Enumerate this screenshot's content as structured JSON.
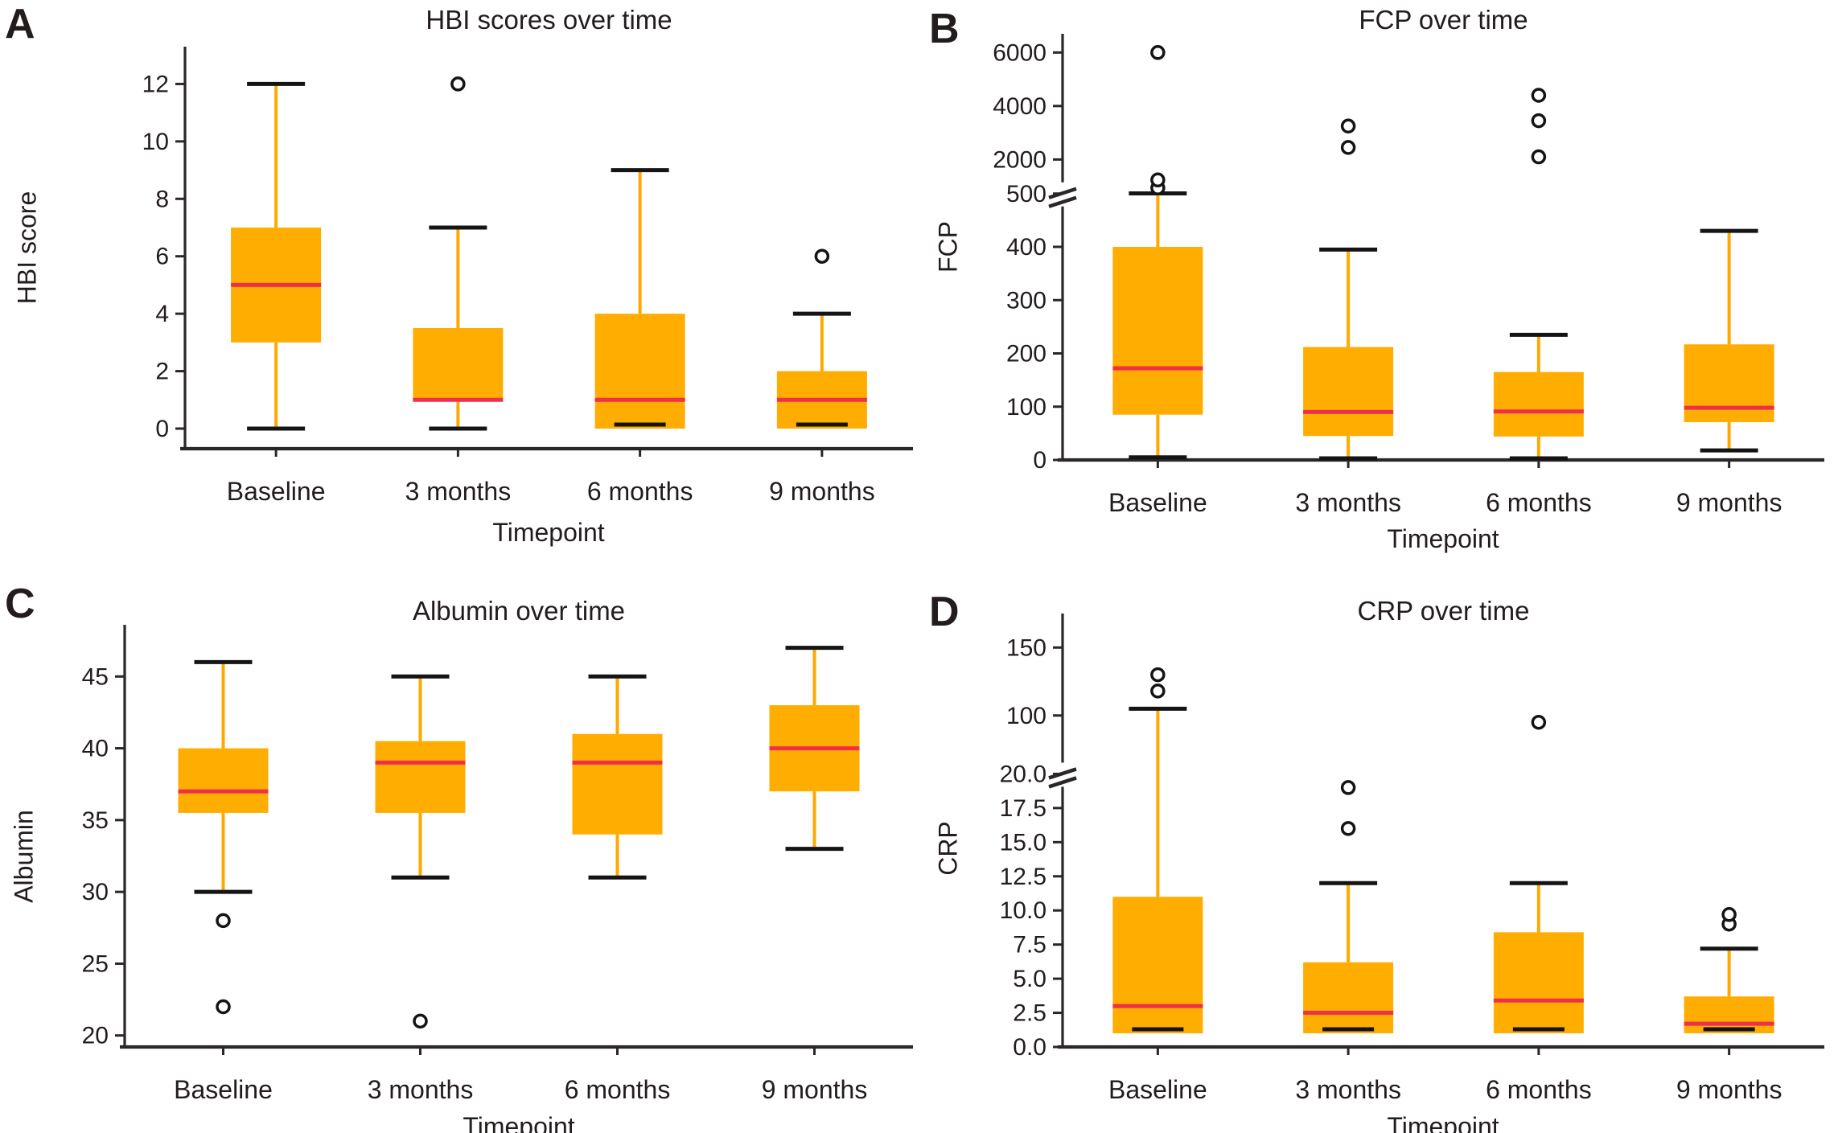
{
  "figure": {
    "background": "#ffffff",
    "colors": {
      "box_fill": "#FFAD00",
      "whisker": "#FFA800",
      "median": "#EF3048",
      "cap": "#141414",
      "outlier_stroke": "#141414",
      "axis": "#2b2627",
      "text": "#231c1d"
    }
  },
  "chart_data": [
    {
      "panel": "A",
      "type": "box",
      "title": "HBI scores over time",
      "ylabel": "HBI score",
      "xlabel": "Timepoint",
      "categories": [
        "Baseline",
        "3 months",
        "6 months",
        "9 months"
      ],
      "axis_break": false,
      "segments": [
        {
          "from": -0.7,
          "to": 13.3,
          "frac": 1.0
        }
      ],
      "yticks": [
        [
          0,
          "0"
        ],
        [
          2,
          "2"
        ],
        [
          4,
          "4"
        ],
        [
          6,
          "6"
        ],
        [
          8,
          "8"
        ],
        [
          10,
          "10"
        ],
        [
          12,
          "12"
        ]
      ],
      "boxes": [
        {
          "category": "Baseline",
          "whislo": 0,
          "q1": 3,
          "med": 5,
          "q3": 7,
          "whishi": 12,
          "outliers": []
        },
        {
          "category": "3 months",
          "whislo": 0,
          "q1": 1,
          "med": 1,
          "q3": 3.5,
          "whishi": 7,
          "outliers": [
            12
          ]
        },
        {
          "category": "6 months",
          "whislo": 0,
          "q1": 0,
          "med": 1,
          "q3": 4,
          "whishi": 9,
          "outliers": []
        },
        {
          "category": "9 months",
          "whislo": 0,
          "q1": 0,
          "med": 1,
          "q3": 2,
          "whishi": 4,
          "outliers": [
            6
          ]
        }
      ]
    },
    {
      "panel": "B",
      "type": "box",
      "title": "FCP over time",
      "ylabel": "FCP",
      "xlabel": "Timepoint",
      "categories": [
        "Baseline",
        "3 months",
        "6 months",
        "9 months"
      ],
      "axis_break": true,
      "segments": [
        {
          "from": 0,
          "to": 500,
          "frac": 0.625
        },
        {
          "from": 500,
          "to": 2000,
          "frac": 0.08
        },
        {
          "from": 2000,
          "to": 6700,
          "frac": 0.295
        }
      ],
      "yticks": [
        [
          0,
          "0"
        ],
        [
          100,
          "100"
        ],
        [
          200,
          "200"
        ],
        [
          300,
          "300"
        ],
        [
          400,
          "400"
        ],
        [
          500,
          "500"
        ],
        [
          2000,
          "2000"
        ],
        [
          4000,
          "4000"
        ],
        [
          6000,
          "6000"
        ]
      ],
      "boxes": [
        {
          "category": "Baseline",
          "whislo": 5,
          "q1": 85,
          "med": 172,
          "q3": 400,
          "whishi": 510,
          "outliers": [
            750,
            1100,
            6000
          ]
        },
        {
          "category": "3 months",
          "whislo": 3,
          "q1": 45,
          "med": 90,
          "q3": 212,
          "whishi": 395,
          "outliers": [
            2450,
            3250
          ]
        },
        {
          "category": "6 months",
          "whislo": 3,
          "q1": 44,
          "med": 91,
          "q3": 165,
          "whishi": 235,
          "outliers": [
            2100,
            3450,
            4400
          ]
        },
        {
          "category": "9 months",
          "whislo": 18,
          "q1": 71,
          "med": 98,
          "q3": 217,
          "whishi": 430,
          "outliers": []
        }
      ]
    },
    {
      "panel": "C",
      "type": "box",
      "title": "Albumin over time",
      "ylabel": "Albumin",
      "xlabel": "Timepoint",
      "categories": [
        "Baseline",
        "3 months",
        "6 months",
        "9 months"
      ],
      "axis_break": false,
      "segments": [
        {
          "from": 19.2,
          "to": 48.6,
          "frac": 1.0
        }
      ],
      "yticks": [
        [
          20,
          "20"
        ],
        [
          25,
          "25"
        ],
        [
          30,
          "30"
        ],
        [
          35,
          "35"
        ],
        [
          40,
          "40"
        ],
        [
          45,
          "45"
        ]
      ],
      "boxes": [
        {
          "category": "Baseline",
          "whislo": 30,
          "q1": 35.5,
          "med": 37,
          "q3": 40,
          "whishi": 46,
          "outliers": [
            28,
            22
          ]
        },
        {
          "category": "3 months",
          "whislo": 31,
          "q1": 35.5,
          "med": 39,
          "q3": 40.5,
          "whishi": 45,
          "outliers": [
            21
          ]
        },
        {
          "category": "6 months",
          "whislo": 31,
          "q1": 34,
          "med": 39,
          "q3": 41,
          "whishi": 45,
          "outliers": []
        },
        {
          "category": "9 months",
          "whislo": 33,
          "q1": 37,
          "med": 40,
          "q3": 43,
          "whishi": 47,
          "outliers": []
        }
      ]
    },
    {
      "panel": "D",
      "type": "box",
      "title": "CRP over time",
      "ylabel": "CRP",
      "xlabel": "Timepoint",
      "categories": [
        "Baseline",
        "3 months",
        "6 months",
        "9 months"
      ],
      "axis_break": true,
      "segments": [
        {
          "from": 0,
          "to": 20,
          "frac": 0.63
        },
        {
          "from": 20,
          "to": 65,
          "frac": 0.025
        },
        {
          "from": 65,
          "to": 175,
          "frac": 0.345
        }
      ],
      "yticks": [
        [
          0,
          "0.0"
        ],
        [
          2.5,
          "2.5"
        ],
        [
          5,
          "5.0"
        ],
        [
          7.5,
          "7.5"
        ],
        [
          10,
          "10.0"
        ],
        [
          12.5,
          "12.5"
        ],
        [
          15,
          "15.0"
        ],
        [
          17.5,
          "17.5"
        ],
        [
          20,
          "20.0"
        ],
        [
          100,
          "100"
        ],
        [
          150,
          "150"
        ]
      ],
      "boxes": [
        {
          "category": "Baseline",
          "whislo": 1,
          "q1": 1,
          "med": 3,
          "q3": 11,
          "whishi": 105,
          "outliers": [
            118,
            130
          ]
        },
        {
          "category": "3 months",
          "whislo": 1,
          "q1": 1,
          "med": 2.5,
          "q3": 6.2,
          "whishi": 12,
          "outliers": [
            16,
            19
          ]
        },
        {
          "category": "6 months",
          "whislo": 1,
          "q1": 1,
          "med": 3.4,
          "q3": 8.4,
          "whishi": 12,
          "outliers": [
            95
          ]
        },
        {
          "category": "9 months",
          "whislo": 1,
          "q1": 1,
          "med": 1.7,
          "q3": 3.7,
          "whishi": 7.2,
          "outliers": [
            9.0,
            9.7
          ]
        }
      ]
    }
  ]
}
